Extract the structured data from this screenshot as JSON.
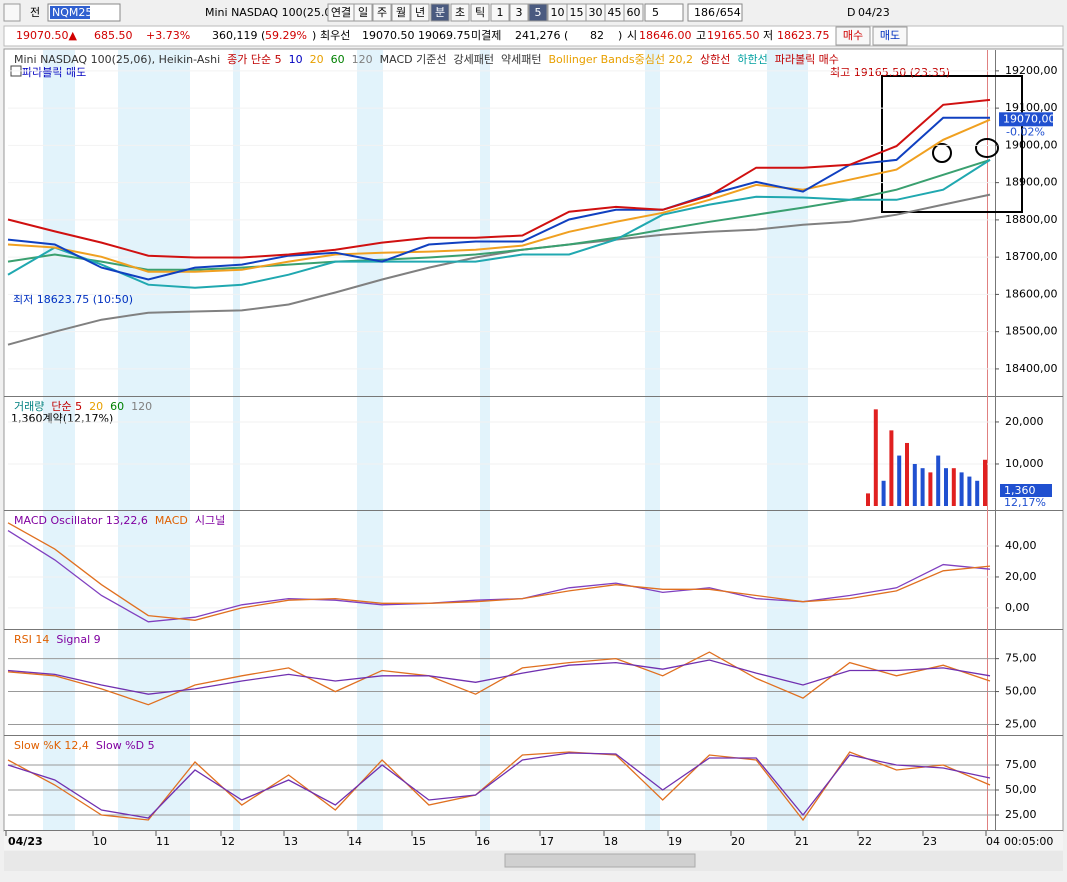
{
  "toolbar": {
    "tab": "전",
    "symbol": "NQM25",
    "name": "Mini NASDAQ 100(25.0",
    "buttons": [
      "연결",
      "일",
      "주",
      "월",
      "년",
      "분",
      "초",
      "틱",
      "1",
      "3",
      "5",
      "10",
      "15",
      "30",
      "45",
      "60"
    ],
    "interval": "5",
    "count": "186",
    "total": "/654",
    "d": "D",
    "date": "04/23"
  },
  "info": {
    "price": "19070.50▲",
    "change": "685.50",
    "rate": "+3.73%",
    "volume": "360,119 (",
    "volume_rate": "59.29%",
    "close_paren": ")",
    "best_label": "최우선",
    "best_ask": "19070.50",
    "best_bid": "19069.75",
    "oi_label": "미결제",
    "oi": "241,276 (",
    "oi_change": "82",
    "oi_close": ")",
    "open_label": "시",
    "open": "18646.00",
    "high_label": "고",
    "high": "19165.50",
    "low_label": "저",
    "low": "18623.75",
    "buy": "매수",
    "sell": "매도"
  },
  "chart_data": [
    {
      "type": "line",
      "legend": [
        {
          "text": "Mini NASDAQ 100(25,06), Heikin-Ashi",
          "color": "#333333"
        },
        {
          "text": "종가 단순 5",
          "color": "#c00000"
        },
        {
          "text": "10",
          "color": "#0000c0"
        },
        {
          "text": "20",
          "color": "#e8a000"
        },
        {
          "text": "60",
          "color": "#008000"
        },
        {
          "text": "120",
          "color": "#808080"
        },
        {
          "text": "MACD 기준선",
          "color": "#333333"
        },
        {
          "text": "강세패턴",
          "color": "#333333"
        },
        {
          "text": "약세패턴",
          "color": "#333333"
        },
        {
          "text": "Bollinger Bands중심선 20,2",
          "color": "#e8a000"
        },
        {
          "text": "상한선",
          "color": "#c00000"
        },
        {
          "text": "하한선",
          "color": "#00a0a0"
        },
        {
          "text": "파라볼릭 매수",
          "color": "#c00000"
        }
      ],
      "legend2": {
        "text": "파라볼릭 매도",
        "color": "#0000c0"
      },
      "high_note": "최고 19165.50 (23:35)",
      "low_note": "최저 18623.75 (10:50)",
      "last_label": "19070,00",
      "last_value": 19070,
      "last_change": "-0.02%",
      "ylim": [
        18330,
        19256
      ],
      "yticks": [
        {
          "value": 19200,
          "label": "19200,00"
        },
        {
          "value": 19100,
          "label": "19100,00"
        },
        {
          "value": 19000,
          "label": "19000,00"
        },
        {
          "value": 18900,
          "label": "18900,00"
        },
        {
          "value": 18800,
          "label": "18800,00"
        },
        {
          "value": 18700,
          "label": "18700,00"
        },
        {
          "value": 18600,
          "label": "18600,00"
        },
        {
          "value": 18500,
          "label": "18500,00"
        },
        {
          "value": 18400,
          "label": "18400,00"
        }
      ],
      "series": [
        {
          "color": "#808080",
          "values": [
            18465,
            18500,
            18532,
            18551,
            18554,
            18557,
            18573,
            18605,
            18640,
            18672,
            18699,
            18720,
            18734,
            18747,
            18760,
            18768,
            18774,
            18787,
            18795,
            18814,
            18841,
            18868
          ]
        },
        {
          "color": "#3aa070",
          "values": [
            18688,
            18707,
            18688,
            18666,
            18666,
            18672,
            18680,
            18688,
            18693,
            18699,
            18707,
            18720,
            18734,
            18752,
            18774,
            18795,
            18814,
            18833,
            18854,
            18881,
            18921,
            18961
          ]
        },
        {
          "color": "#20a8b0",
          "values": [
            18653,
            18726,
            18680,
            18626,
            18618,
            18626,
            18653,
            18688,
            18688,
            18688,
            18688,
            18707,
            18707,
            18747,
            18814,
            18841,
            18862,
            18860,
            18854,
            18854,
            18881,
            18961
          ]
        },
        {
          "color": "#f0a020",
          "values": [
            18734,
            18726,
            18701,
            18661,
            18661,
            18666,
            18688,
            18707,
            18712,
            18715,
            18720,
            18731,
            18768,
            18795,
            18819,
            18854,
            18894,
            18881,
            18908,
            18935,
            19015,
            19069
          ]
        },
        {
          "color": "#1040c0",
          "values": [
            18747,
            18734,
            18672,
            18640,
            18672,
            18680,
            18704,
            18712,
            18688,
            18734,
            18742,
            18742,
            18801,
            18827,
            18827,
            18868,
            18902,
            18876,
            18948,
            18961,
            19074,
            19074
          ]
        },
        {
          "color": "#d01010",
          "values": [
            18801,
            18769,
            18739,
            18704,
            18699,
            18699,
            18707,
            18720,
            18739,
            18752,
            18752,
            18758,
            18822,
            18835,
            18827,
            18865,
            18940,
            18940,
            18948,
            18998,
            19109,
            19122
          ]
        }
      ]
    },
    {
      "type": "bar",
      "legend": [
        {
          "text": "거래량",
          "color": "#008080"
        },
        {
          "text": "단순 5",
          "color": "#c00000"
        },
        {
          "text": "20",
          "color": "#e8a000"
        },
        {
          "text": "60",
          "color": "#008000"
        },
        {
          "text": "120",
          "color": "#808080"
        }
      ],
      "note": "1,360계약(12,17%)",
      "last_label": "1,360",
      "last_rate": "12,17%",
      "ylim": [
        0,
        25700
      ],
      "yticks": [
        {
          "value": 20000,
          "label": "20,000"
        },
        {
          "value": 10000,
          "label": "10,000"
        }
      ],
      "values": [
        3000,
        23000,
        6000,
        18000,
        12000,
        15000,
        10000,
        9000,
        8000,
        12000,
        9000,
        9000,
        8000,
        7000,
        6000,
        11000
      ],
      "colors": [
        "#e02020",
        "#e02020",
        "#2050d0",
        "#e02020",
        "#2050d0",
        "#e02020",
        "#2050d0",
        "#2050d0",
        "#e02020",
        "#2050d0",
        "#2050d0",
        "#e02020",
        "#2050d0",
        "#2050d0",
        "#2050d0",
        "#e02020"
      ]
    },
    {
      "type": "line",
      "legend": [
        {
          "text": "MACD Oscillator 13,22,6",
          "color": "#8000a0"
        },
        {
          "text": "MACD",
          "color": "#e06000"
        },
        {
          "text": "시그널",
          "color": "#8000a0"
        }
      ],
      "ylim": [
        -13,
        62
      ],
      "yticks": [
        {
          "value": 40,
          "label": "40,00"
        },
        {
          "value": 20,
          "label": "20,00"
        },
        {
          "value": 0,
          "label": "0,00"
        }
      ],
      "series": [
        {
          "color": "#8040c0",
          "values": [
            50,
            31,
            8,
            -9,
            -6,
            2,
            6,
            5,
            2,
            3,
            5,
            6,
            13,
            16,
            10,
            13,
            6,
            4,
            8,
            13,
            28,
            25
          ]
        },
        {
          "color": "#e07020",
          "values": [
            55,
            38,
            15,
            -5,
            -8,
            0,
            5,
            6,
            3,
            3,
            4,
            6,
            11,
            15,
            12,
            12,
            8,
            4,
            6,
            11,
            24,
            27
          ]
        }
      ]
    },
    {
      "type": "line",
      "legend": [
        {
          "text": "RSI 14",
          "color": "#e06000"
        },
        {
          "text": "Signal 9",
          "color": "#8000a0"
        }
      ],
      "ylim": [
        17,
        96
      ],
      "yticks": [
        {
          "value": 75,
          "label": "75,00"
        },
        {
          "value": 50,
          "label": "50,00"
        },
        {
          "value": 25,
          "label": "25,00"
        }
      ],
      "series": [
        {
          "color": "#e07020",
          "values": [
            65,
            62,
            52,
            40,
            55,
            62,
            68,
            50,
            66,
            62,
            48,
            68,
            72,
            75,
            62,
            80,
            60,
            45,
            72,
            62,
            70,
            58
          ]
        },
        {
          "color": "#7030b0",
          "values": [
            66,
            63,
            55,
            48,
            52,
            58,
            63,
            58,
            62,
            62,
            57,
            64,
            70,
            72,
            67,
            74,
            64,
            55,
            66,
            66,
            68,
            62
          ]
        }
      ]
    },
    {
      "type": "line",
      "legend": [
        {
          "text": "Slow %K 12,4",
          "color": "#e06000"
        },
        {
          "text": "Slow %D 5",
          "color": "#8000a0"
        }
      ],
      "ylim": [
        10,
        103
      ],
      "yticks": [
        {
          "value": 75,
          "label": "75,00"
        },
        {
          "value": 50,
          "label": "50,00"
        },
        {
          "value": 25,
          "label": "25,00"
        }
      ],
      "series": [
        {
          "color": "#e07020",
          "values": [
            80,
            55,
            25,
            20,
            78,
            35,
            65,
            30,
            80,
            35,
            45,
            85,
            88,
            85,
            40,
            85,
            80,
            20,
            88,
            70,
            75,
            55
          ]
        },
        {
          "color": "#7030b0",
          "values": [
            75,
            60,
            30,
            22,
            70,
            40,
            60,
            35,
            75,
            40,
            45,
            80,
            87,
            86,
            50,
            82,
            82,
            25,
            85,
            75,
            72,
            62
          ]
        }
      ]
    }
  ],
  "x_labels": [
    "04/23",
    "10",
    "11",
    "12",
    "13",
    "14",
    "15",
    "16",
    "17",
    "18",
    "19",
    "20",
    "21",
    "22",
    "23",
    "04"
  ],
  "time_label": "00:05:00"
}
